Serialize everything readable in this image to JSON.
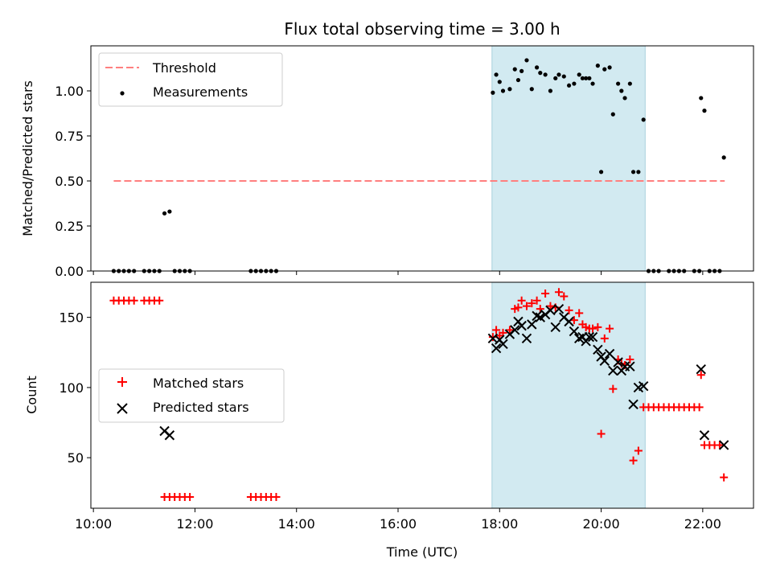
{
  "chart_data": {
    "type": "scatter",
    "title": "Flux total observing time = 3.00 h",
    "xlabel": "Time (UTC)",
    "x_ticks": [
      "10:00",
      "12:00",
      "14:00",
      "16:00",
      "18:00",
      "20:00",
      "22:00"
    ],
    "xlim": [
      "09:57",
      "23:00"
    ],
    "colors": {
      "threshold": "#ff7f7f",
      "measurements": "#000000",
      "matched": "#ff0000",
      "predicted": "#000000",
      "shade": "#add8e6"
    },
    "shaded_interval": [
      "17:51",
      "20:52"
    ],
    "panels": [
      {
        "ylabel": "Matched/Predicted stars",
        "ylim": [
          0,
          1.25
        ],
        "y_ticks": [
          "0.00",
          "0.25",
          "0.50",
          "0.75",
          "1.00"
        ],
        "legend_position": "upper left",
        "legend": [
          "Threshold",
          "Measurements"
        ],
        "threshold": {
          "value": 0.5,
          "x_range": [
            "10:24",
            "22:26"
          ]
        },
        "measurements": [
          [
            "10:24",
            0
          ],
          [
            "10:30",
            0
          ],
          [
            "10:36",
            0
          ],
          [
            "10:42",
            0
          ],
          [
            "10:48",
            0
          ],
          [
            "11:00",
            0
          ],
          [
            "11:06",
            0
          ],
          [
            "11:12",
            0
          ],
          [
            "11:18",
            0
          ],
          [
            "11:24",
            0.32
          ],
          [
            "11:30",
            0.33
          ],
          [
            "11:36",
            0
          ],
          [
            "11:42",
            0
          ],
          [
            "11:48",
            0
          ],
          [
            "11:54",
            0
          ],
          [
            "13:06",
            0
          ],
          [
            "13:12",
            0
          ],
          [
            "13:18",
            0
          ],
          [
            "13:24",
            0
          ],
          [
            "13:30",
            0
          ],
          [
            "13:36",
            0
          ],
          [
            "17:52",
            0.99
          ],
          [
            "17:56",
            1.09
          ],
          [
            "18:00",
            1.05
          ],
          [
            "18:04",
            1.0
          ],
          [
            "18:12",
            1.01
          ],
          [
            "18:18",
            1.12
          ],
          [
            "18:22",
            1.06
          ],
          [
            "18:26",
            1.11
          ],
          [
            "18:32",
            1.17
          ],
          [
            "18:38",
            1.01
          ],
          [
            "18:44",
            1.13
          ],
          [
            "18:48",
            1.1
          ],
          [
            "18:54",
            1.09
          ],
          [
            "19:00",
            1.0
          ],
          [
            "19:06",
            1.07
          ],
          [
            "19:10",
            1.09
          ],
          [
            "19:16",
            1.08
          ],
          [
            "19:22",
            1.03
          ],
          [
            "19:28",
            1.04
          ],
          [
            "19:34",
            1.09
          ],
          [
            "19:38",
            1.07
          ],
          [
            "19:42",
            1.07
          ],
          [
            "19:46",
            1.07
          ],
          [
            "19:50",
            1.04
          ],
          [
            "19:56",
            1.14
          ],
          [
            "20:00",
            0.55
          ],
          [
            "20:04",
            1.12
          ],
          [
            "20:10",
            1.13
          ],
          [
            "20:14",
            0.87
          ],
          [
            "20:20",
            1.04
          ],
          [
            "20:24",
            1.0
          ],
          [
            "20:28",
            0.96
          ],
          [
            "20:34",
            1.04
          ],
          [
            "20:38",
            0.55
          ],
          [
            "20:44",
            0.55
          ],
          [
            "20:50",
            0.84
          ],
          [
            "20:56",
            0
          ],
          [
            "21:02",
            0
          ],
          [
            "21:08",
            0
          ],
          [
            "21:20",
            0
          ],
          [
            "21:26",
            0
          ],
          [
            "21:32",
            0
          ],
          [
            "21:38",
            0
          ],
          [
            "21:50",
            0
          ],
          [
            "21:56",
            0
          ],
          [
            "21:58",
            0.96
          ],
          [
            "22:02",
            0.89
          ],
          [
            "22:08",
            0
          ],
          [
            "22:14",
            0
          ],
          [
            "22:20",
            0
          ],
          [
            "22:25",
            0.63
          ]
        ]
      },
      {
        "ylabel": "Count",
        "ylim": [
          14,
          175
        ],
        "y_ticks": [
          "50",
          "100",
          "150"
        ],
        "legend_position": "center left",
        "legend": [
          "Matched stars",
          "Predicted stars"
        ],
        "matched_stars": [
          [
            "10:24",
            162
          ],
          [
            "10:30",
            162
          ],
          [
            "10:36",
            162
          ],
          [
            "10:42",
            162
          ],
          [
            "10:48",
            162
          ],
          [
            "11:00",
            162
          ],
          [
            "11:06",
            162
          ],
          [
            "11:12",
            162
          ],
          [
            "11:18",
            162
          ],
          [
            "11:24",
            22
          ],
          [
            "11:30",
            22
          ],
          [
            "11:36",
            22
          ],
          [
            "11:42",
            22
          ],
          [
            "11:48",
            22
          ],
          [
            "11:54",
            22
          ],
          [
            "13:06",
            22
          ],
          [
            "13:12",
            22
          ],
          [
            "13:18",
            22
          ],
          [
            "13:24",
            22
          ],
          [
            "13:30",
            22
          ],
          [
            "13:36",
            22
          ],
          [
            "17:52",
            136
          ],
          [
            "17:56",
            141
          ],
          [
            "18:00",
            137
          ],
          [
            "18:04",
            139
          ],
          [
            "18:12",
            141
          ],
          [
            "18:18",
            156
          ],
          [
            "18:22",
            157
          ],
          [
            "18:26",
            162
          ],
          [
            "18:32",
            158
          ],
          [
            "18:38",
            160
          ],
          [
            "18:44",
            162
          ],
          [
            "18:48",
            156
          ],
          [
            "18:54",
            167
          ],
          [
            "19:00",
            158
          ],
          [
            "19:06",
            157
          ],
          [
            "19:10",
            168
          ],
          [
            "19:16",
            165
          ],
          [
            "19:22",
            155
          ],
          [
            "19:28",
            148
          ],
          [
            "19:34",
            153
          ],
          [
            "19:38",
            145
          ],
          [
            "19:42",
            143
          ],
          [
            "19:46",
            142
          ],
          [
            "19:50",
            142
          ],
          [
            "19:56",
            143
          ],
          [
            "20:00",
            67
          ],
          [
            "20:04",
            135
          ],
          [
            "20:10",
            142
          ],
          [
            "20:14",
            99
          ],
          [
            "20:20",
            120
          ],
          [
            "20:24",
            117
          ],
          [
            "20:28",
            116
          ],
          [
            "20:34",
            120
          ],
          [
            "20:38",
            48
          ],
          [
            "20:44",
            55
          ],
          [
            "20:50",
            86
          ],
          [
            "20:56",
            86
          ],
          [
            "21:02",
            86
          ],
          [
            "21:08",
            86
          ],
          [
            "21:14",
            86
          ],
          [
            "21:20",
            86
          ],
          [
            "21:26",
            86
          ],
          [
            "21:32",
            86
          ],
          [
            "21:38",
            86
          ],
          [
            "21:44",
            86
          ],
          [
            "21:50",
            86
          ],
          [
            "21:56",
            86
          ],
          [
            "21:58",
            109
          ],
          [
            "22:02",
            59
          ],
          [
            "22:08",
            59
          ],
          [
            "22:14",
            59
          ],
          [
            "22:20",
            59
          ],
          [
            "22:25",
            36
          ]
        ],
        "predicted_stars": [
          [
            "11:24",
            69
          ],
          [
            "11:30",
            66
          ],
          [
            "17:52",
            135
          ],
          [
            "17:56",
            128
          ],
          [
            "18:00",
            134
          ],
          [
            "18:04",
            131
          ],
          [
            "18:12",
            138
          ],
          [
            "18:18",
            141
          ],
          [
            "18:22",
            147
          ],
          [
            "18:26",
            144
          ],
          [
            "18:32",
            135
          ],
          [
            "18:38",
            145
          ],
          [
            "18:44",
            151
          ],
          [
            "18:48",
            150
          ],
          [
            "18:54",
            152
          ],
          [
            "19:00",
            155
          ],
          [
            "19:06",
            143
          ],
          [
            "19:10",
            156
          ],
          [
            "19:16",
            150
          ],
          [
            "19:22",
            147
          ],
          [
            "19:28",
            140
          ],
          [
            "19:34",
            135
          ],
          [
            "19:38",
            136
          ],
          [
            "19:42",
            133
          ],
          [
            "19:46",
            136
          ],
          [
            "19:50",
            136
          ],
          [
            "19:56",
            127
          ],
          [
            "20:00",
            122
          ],
          [
            "20:04",
            119
          ],
          [
            "20:10",
            124
          ],
          [
            "20:14",
            112
          ],
          [
            "20:20",
            118
          ],
          [
            "20:24",
            112
          ],
          [
            "20:28",
            115
          ],
          [
            "20:34",
            115
          ],
          [
            "20:38",
            88
          ],
          [
            "20:44",
            100
          ],
          [
            "20:50",
            101
          ],
          [
            "21:58",
            113
          ],
          [
            "22:02",
            66
          ],
          [
            "22:25",
            59
          ]
        ]
      }
    ]
  }
}
